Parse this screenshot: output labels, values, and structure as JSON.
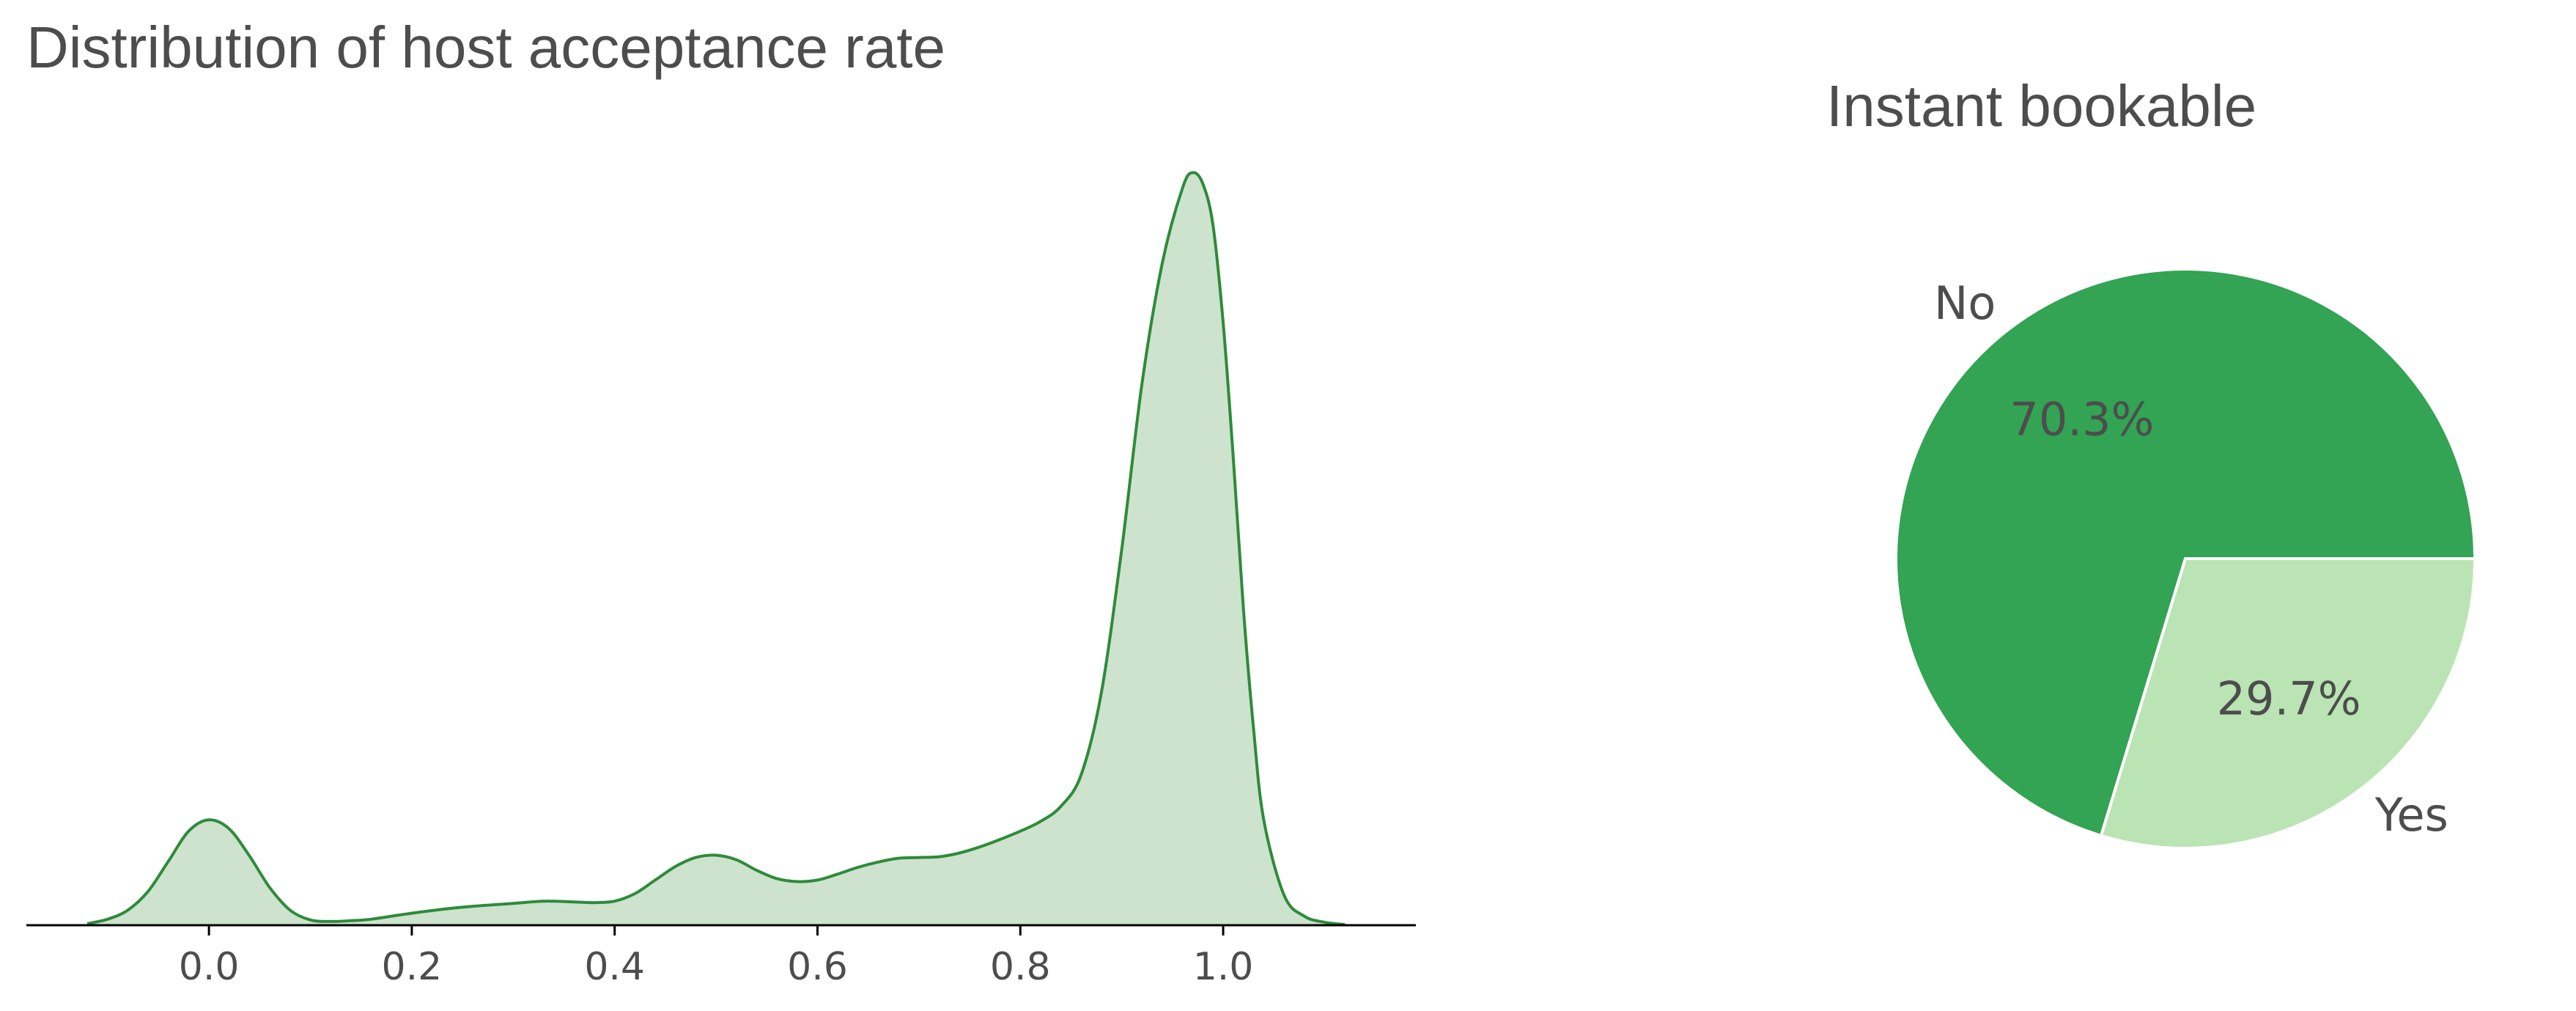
{
  "chart_data": [
    {
      "type": "area",
      "kind": "kde",
      "title": "Distribution of host acceptance rate",
      "xlabel": "",
      "ylabel": "",
      "xlim": [
        -0.18,
        1.19
      ],
      "ylim": [
        0,
        1.02
      ],
      "xticks": [
        "0.0",
        "0.2",
        "0.4",
        "0.6",
        "0.8",
        "1.0"
      ],
      "yaxis_visible": false,
      "grid": false,
      "line_color": "#2e8b3a",
      "fill_color": "#cde3cd",
      "x": [
        -0.12,
        -0.1,
        -0.08,
        -0.06,
        -0.04,
        -0.02,
        0.0,
        0.02,
        0.04,
        0.06,
        0.08,
        0.1,
        0.12,
        0.14,
        0.16,
        0.2,
        0.25,
        0.3,
        0.33,
        0.36,
        0.38,
        0.4,
        0.42,
        0.44,
        0.46,
        0.48,
        0.5,
        0.52,
        0.54,
        0.56,
        0.58,
        0.6,
        0.62,
        0.64,
        0.66,
        0.68,
        0.7,
        0.72,
        0.74,
        0.76,
        0.78,
        0.8,
        0.82,
        0.84,
        0.86,
        0.88,
        0.9,
        0.92,
        0.94,
        0.96,
        0.97,
        0.98,
        0.99,
        1.0,
        1.01,
        1.02,
        1.03,
        1.04,
        1.06,
        1.08,
        1.1,
        1.12
      ],
      "y": [
        0.002,
        0.008,
        0.02,
        0.045,
        0.085,
        0.125,
        0.14,
        0.128,
        0.092,
        0.05,
        0.02,
        0.007,
        0.005,
        0.006,
        0.008,
        0.016,
        0.024,
        0.029,
        0.032,
        0.031,
        0.03,
        0.032,
        0.042,
        0.06,
        0.078,
        0.09,
        0.093,
        0.087,
        0.073,
        0.062,
        0.058,
        0.06,
        0.068,
        0.077,
        0.084,
        0.089,
        0.09,
        0.091,
        0.096,
        0.104,
        0.114,
        0.125,
        0.138,
        0.158,
        0.2,
        0.31,
        0.5,
        0.72,
        0.88,
        0.98,
        1.0,
        0.985,
        0.93,
        0.8,
        0.62,
        0.42,
        0.26,
        0.14,
        0.04,
        0.012,
        0.004,
        0.001
      ]
    },
    {
      "type": "pie",
      "title": "Instant bookable",
      "labels": [
        "No",
        "Yes"
      ],
      "values": [
        70.3,
        29.7
      ],
      "value_labels": [
        "70.3%",
        "29.7%"
      ],
      "colors": [
        "#33a354",
        "#bae4b3"
      ],
      "start_angle_deg": 0,
      "direction": "counterclockwise"
    }
  ]
}
